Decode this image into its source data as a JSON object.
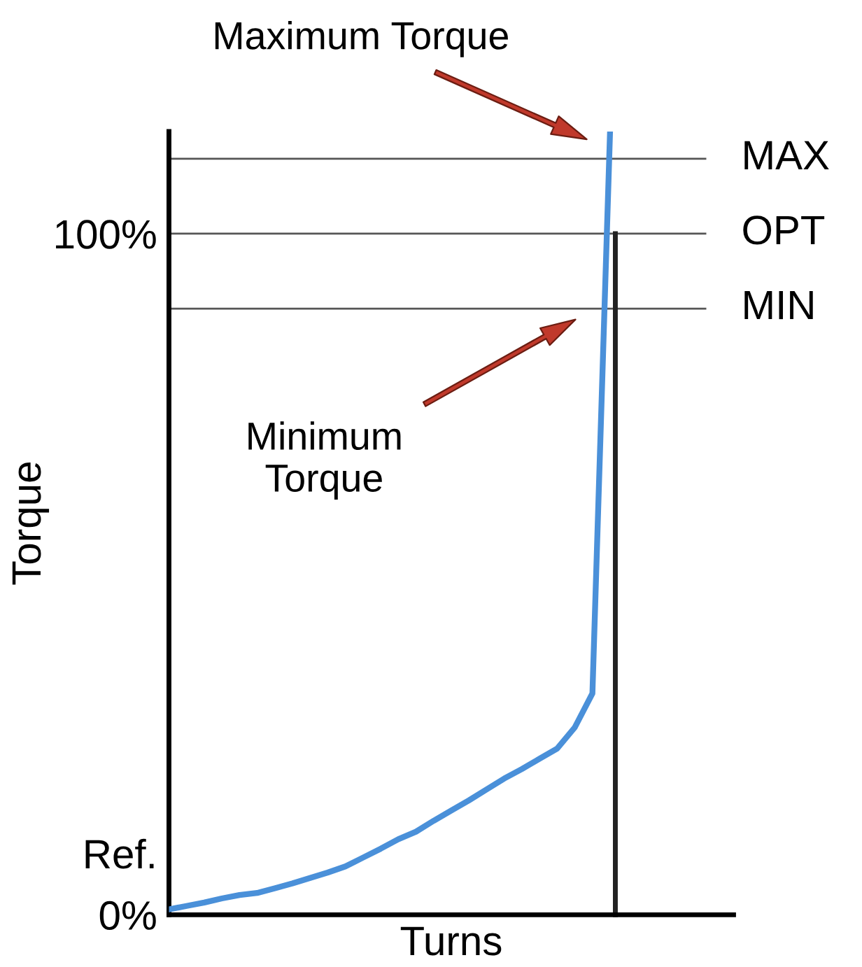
{
  "chart_data": {
    "type": "line",
    "xlabel": "Turns",
    "ylabel": "Torque",
    "categories": [
      null,
      null,
      null,
      null,
      null,
      null,
      null,
      null,
      null,
      null,
      null,
      null,
      null,
      null,
      null,
      null,
      null,
      null,
      null,
      null,
      null,
      null,
      null,
      null,
      null,
      null,
      null,
      null,
      null,
      null,
      null,
      null,
      null
    ],
    "series": [
      {
        "color": "#4a90d9",
        "values": [
          0.8,
          1.3,
          1.8,
          2.4,
          2.9,
          3.2,
          3.9,
          4.6,
          5.4,
          6.2,
          7.1,
          8.4,
          9.7,
          11.1,
          12.2,
          13.8,
          15.3,
          16.8,
          18.4,
          20,
          21.4,
          22.9,
          24.4,
          27.5,
          32.5,
          115,
          null,
          null,
          null,
          null,
          null,
          null,
          null
        ]
      }
    ],
    "ylim": [
      0,
      115
    ],
    "yticks": [
      {
        "value": 0,
        "label": "0%"
      },
      {
        "value": 9,
        "label": "Ref."
      },
      {
        "value": 100,
        "label": "100%"
      }
    ],
    "ref_lines": [
      {
        "axis": "y",
        "value": 111,
        "label": "MAX",
        "color": "#555555"
      },
      {
        "axis": "y",
        "value": 100,
        "label": "OPT",
        "color": "#555555"
      },
      {
        "axis": "y",
        "value": 89,
        "label": "MIN",
        "color": "#555555"
      }
    ],
    "annotations": [
      "Maximum Torque",
      "Minimum\nTorque"
    ],
    "grid": false,
    "legend": false,
    "marker": "none",
    "line_style": "solid"
  }
}
